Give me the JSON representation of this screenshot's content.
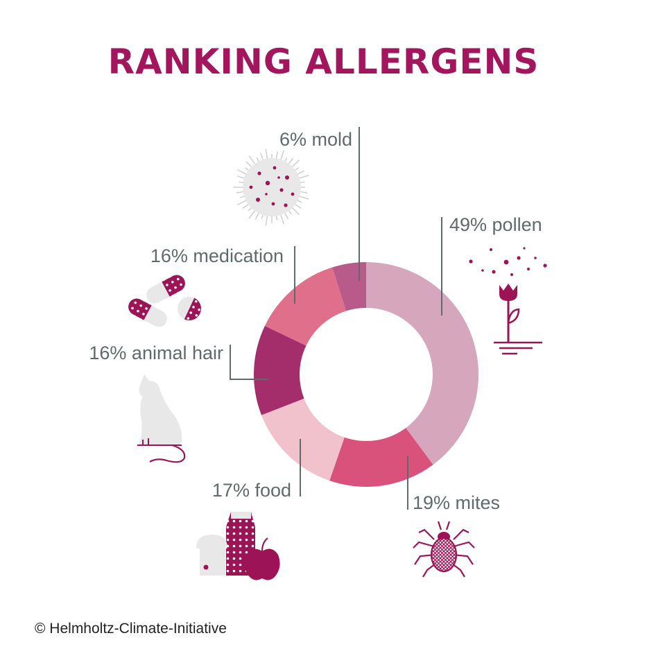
{
  "colors": {
    "title": "#a3165e",
    "icon": "#9c1456",
    "icon_light": "#e8e8e8",
    "leader": "#5f6a6b"
  },
  "copyright": "© Helmholtz-Climate-Initiative",
  "chart_data": {
    "type": "pie",
    "variant": "donut",
    "title": "RANKING ALLERGENS",
    "start": "12 o'clock, clockwise",
    "slices": [
      {
        "key": "pollen",
        "value": 49,
        "label": "49% pollen",
        "color": "#d6a6bd",
        "icon": "flower-pollen-icon"
      },
      {
        "key": "mites",
        "value": 19,
        "label": "19% mites",
        "color": "#d9527b",
        "icon": "mite-icon"
      },
      {
        "key": "food",
        "value": 17,
        "label": "17% food",
        "color": "#f1c2cc",
        "icon": "food-icon"
      },
      {
        "key": "animal_hair",
        "value": 16,
        "label": "16% animal hair",
        "color": "#a42d6b",
        "icon": "cat-icon"
      },
      {
        "key": "medication",
        "value": 16,
        "label": "16% medication",
        "color": "#e06f8c",
        "icon": "pills-icon"
      },
      {
        "key": "mold",
        "value": 6,
        "label": "6% mold",
        "color": "#b95b8a",
        "icon": "mold-spore-icon"
      }
    ]
  }
}
